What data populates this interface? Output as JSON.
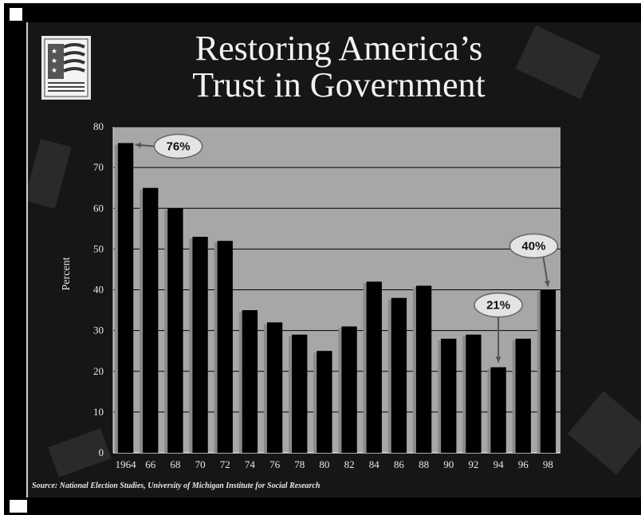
{
  "slide": {
    "title_line1": "Restoring America’s",
    "title_line2": "Trust in Government",
    "source": "Source: National Election Studies, University of Michigan Institute for Social Research",
    "logo_icon": "flag-stars-stripes-icon"
  },
  "chart_data": {
    "type": "bar",
    "categories": [
      "1964",
      "66",
      "68",
      "70",
      "72",
      "74",
      "76",
      "78",
      "80",
      "82",
      "84",
      "86",
      "88",
      "90",
      "92",
      "94",
      "96",
      "98"
    ],
    "values": [
      76,
      65,
      60,
      53,
      52,
      35,
      32,
      29,
      25,
      31,
      42,
      38,
      41,
      28,
      29,
      21,
      28,
      40
    ],
    "ylabel": "Percent",
    "xlabel": "",
    "ylim": [
      0,
      80
    ],
    "yticks": [
      0,
      10,
      20,
      30,
      40,
      50,
      60,
      70,
      80
    ],
    "grid": true,
    "annotations": [
      {
        "label": "76%",
        "category": "1964"
      },
      {
        "label": "21%",
        "category": "94"
      },
      {
        "label": "40%",
        "category": "98"
      }
    ],
    "colors": {
      "bar": "#000000",
      "bar_shadow": "#8a8a8a",
      "plot_bg": "#a7a7a7",
      "grid": "#000000"
    }
  }
}
